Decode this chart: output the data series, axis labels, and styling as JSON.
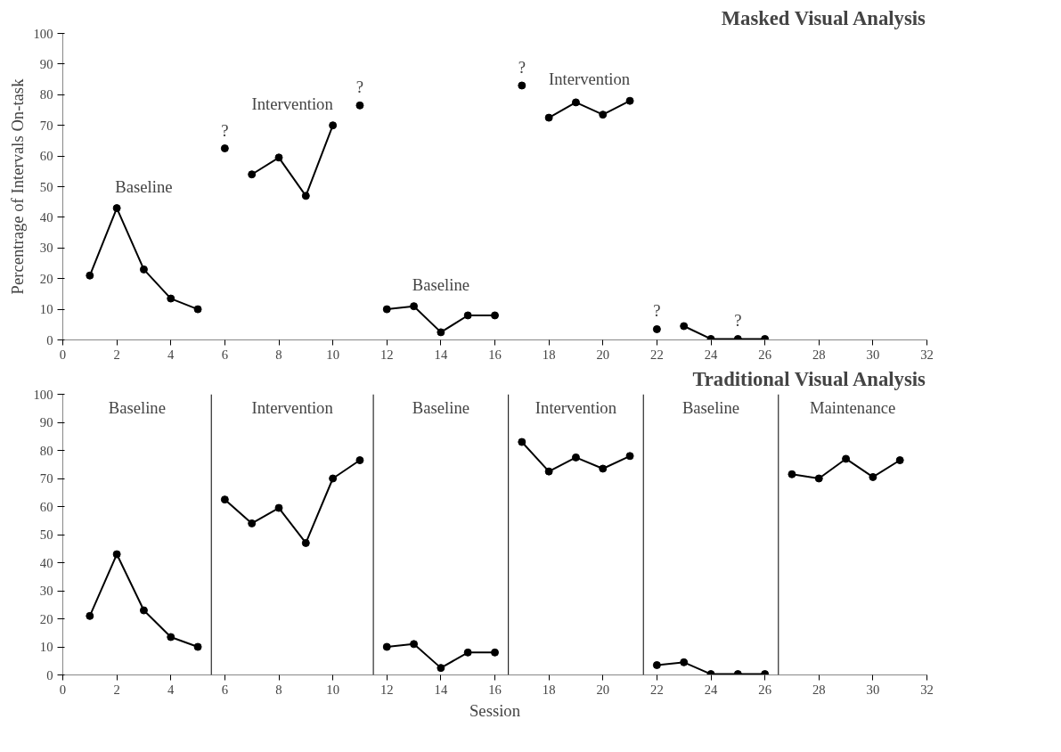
{
  "chart_data": [
    {
      "type": "line",
      "title": "Masked Visual Analysis",
      "ylabel": "Percentrage of Intervals On-task",
      "xlim": [
        0,
        32
      ],
      "ylim": [
        0,
        100
      ],
      "xticks": [
        0,
        2,
        4,
        6,
        8,
        10,
        12,
        14,
        16,
        18,
        20,
        22,
        24,
        26,
        28,
        30,
        32
      ],
      "yticks": [
        0,
        10,
        20,
        30,
        40,
        50,
        60,
        70,
        80,
        90,
        100
      ],
      "grid": false,
      "marker": "circle",
      "line_style": "solid",
      "color": "#000000",
      "series": [
        {
          "name": "Baseline",
          "x": [
            1,
            2,
            3,
            4,
            5
          ],
          "values": [
            21,
            43,
            23,
            13.5,
            10
          ]
        },
        {
          "type": "scatter",
          "x": [
            6
          ],
          "values": [
            62.5
          ]
        },
        {
          "name": "Intervention",
          "x": [
            7,
            8,
            9,
            10
          ],
          "values": [
            54,
            59.5,
            47,
            70
          ]
        },
        {
          "type": "scatter",
          "x": [
            11
          ],
          "values": [
            76.5
          ]
        },
        {
          "name": "Baseline",
          "x": [
            12,
            13,
            14,
            15,
            16
          ],
          "values": [
            10,
            11,
            2.5,
            8,
            8
          ]
        },
        {
          "type": "scatter",
          "x": [
            17
          ],
          "values": [
            83
          ]
        },
        {
          "name": "Intervention",
          "x": [
            18,
            19,
            20,
            21
          ],
          "values": [
            72.5,
            77.5,
            73.5,
            78
          ]
        },
        {
          "type": "scatter",
          "x": [
            22
          ],
          "values": [
            3.5
          ]
        },
        {
          "x": [
            23,
            24,
            25,
            26
          ],
          "values": [
            4.5,
            0.3,
            0.3,
            0.3
          ]
        }
      ],
      "annotations": [
        {
          "text": "?",
          "x": 6,
          "y": 62.5
        },
        {
          "text": "?",
          "x": 11,
          "y": 76.5
        },
        {
          "text": "?",
          "x": 17,
          "y": 83
        },
        {
          "text": "?",
          "x": 22,
          "y": 3.5
        },
        {
          "text": "?",
          "x": 25,
          "y": 0.3
        }
      ]
    },
    {
      "type": "line",
      "title": "Traditional Visual Analysis",
      "xlabel": "Session",
      "xlim": [
        0,
        32
      ],
      "ylim": [
        0,
        100
      ],
      "xticks": [
        0,
        2,
        4,
        6,
        8,
        10,
        12,
        14,
        16,
        18,
        20,
        22,
        24,
        26,
        28,
        30,
        32
      ],
      "yticks": [
        0,
        10,
        20,
        30,
        40,
        50,
        60,
        70,
        80,
        90,
        100
      ],
      "grid": false,
      "marker": "circle",
      "line_style": "solid",
      "color": "#000000",
      "series": [
        {
          "x": [
            1,
            2,
            3,
            4,
            5
          ],
          "values": [
            21,
            43,
            23,
            13.5,
            10
          ]
        },
        {
          "x": [
            6,
            7,
            8,
            9,
            10,
            11
          ],
          "values": [
            62.5,
            54,
            59.5,
            47,
            70,
            76.5
          ]
        },
        {
          "x": [
            12,
            13,
            14,
            15,
            16
          ],
          "values": [
            10,
            11,
            2.5,
            8,
            8
          ]
        },
        {
          "x": [
            17,
            18,
            19,
            20,
            21
          ],
          "values": [
            83,
            72.5,
            77.5,
            73.5,
            78
          ]
        },
        {
          "x": [
            22,
            23,
            24,
            25,
            26
          ],
          "values": [
            3.5,
            4.5,
            0.3,
            0.3,
            0.3
          ]
        },
        {
          "x": [
            27,
            28,
            29,
            30,
            31
          ],
          "values": [
            71.5,
            70,
            77,
            70.5,
            76.5
          ]
        }
      ],
      "ref_lines": [
        {
          "axis": "x",
          "value": 5.5
        },
        {
          "axis": "x",
          "value": 11.5
        },
        {
          "axis": "x",
          "value": 16.5
        },
        {
          "axis": "x",
          "value": 21.5
        },
        {
          "axis": "x",
          "value": 26.5
        }
      ],
      "annotations": [
        "Baseline",
        "Intervention",
        "Baseline",
        "Intervention",
        "Baseline",
        "Maintenance"
      ]
    }
  ]
}
